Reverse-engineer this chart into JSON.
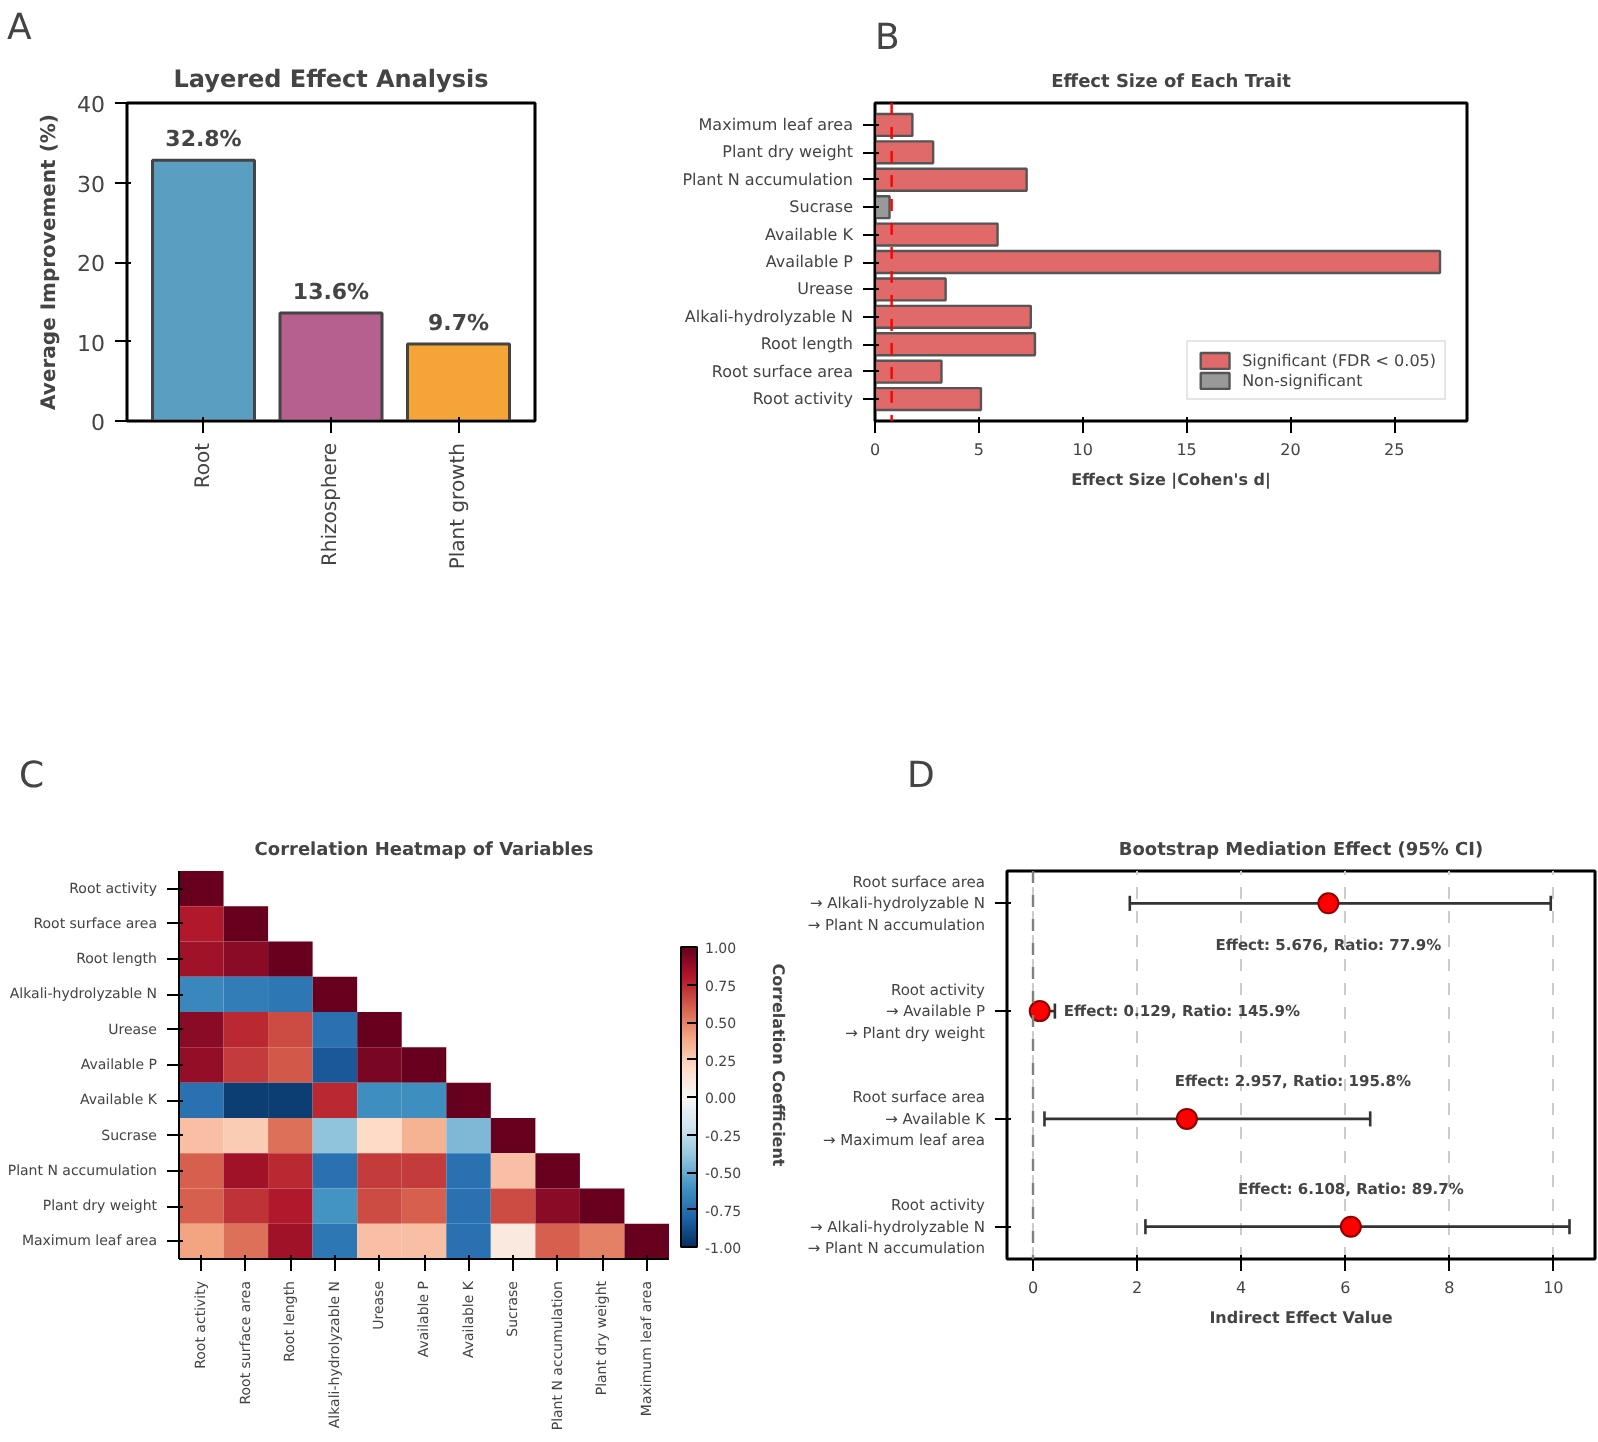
{
  "chart_data": [
    {
      "type": "bar",
      "title": "Layered Effect Analysis",
      "ylabel": "Average Improvement (%)",
      "annotations": [
        "A"
      ],
      "categories": [
        "Root",
        "Rhizosphere",
        "Plant growth"
      ],
      "values": [
        32.8,
        13.6,
        9.7
      ],
      "colors": [
        "#5a9fc1",
        "#b5608f",
        "#f5a437"
      ],
      "value_labels": [
        "32.8%",
        "13.6%",
        "9.7%"
      ],
      "ylim": [
        0,
        40
      ],
      "yticks": [
        0,
        10,
        20,
        30,
        40
      ]
    },
    {
      "type": "bar",
      "orientation": "horizontal",
      "title": "Effect Size of Each Trait",
      "xlabel": "Effect Size |Cohen's d|",
      "annotations": [
        "B"
      ],
      "categories": [
        "Maximum leaf area",
        "Plant dry weight",
        "Plant N accumulation",
        "Sucrase",
        "Available K",
        "Available P",
        "Urease",
        "Alkali-hydrolyzable N",
        "Root length",
        "Root surface area",
        "Root activity"
      ],
      "series": [
        {
          "name": "Significant (FDR < 0.05)",
          "color": "#e06a6a",
          "values": [
            1.8,
            2.8,
            7.3,
            null,
            5.9,
            27.2,
            3.4,
            7.5,
            7.7,
            3.2,
            5.1
          ]
        },
        {
          "name": "Non-significant",
          "color": "#999999",
          "values": [
            null,
            null,
            null,
            0.7,
            null,
            null,
            null,
            null,
            null,
            null,
            null
          ]
        }
      ],
      "xlim": [
        0,
        28.5
      ],
      "xticks": [
        0,
        5,
        10,
        15,
        20,
        25
      ],
      "legend": "bottom right",
      "ref_lines": [
        {
          "axis": "x",
          "value": 0.8,
          "color": "#ff0000",
          "line_style": "dashed"
        }
      ]
    },
    {
      "type": "heatmap",
      "title": "Correlation Heatmap of Variables",
      "clabel": "Correlation Coefficient",
      "annotations": [
        "C"
      ],
      "categories": [
        "Root activity",
        "Root surface area",
        "Root length",
        "Alkali-hydrolyzable N",
        "Urease",
        "Available P",
        "Available K",
        "Sucrase",
        "Plant N accumulation",
        "Plant dry weight",
        "Maximum leaf area"
      ],
      "y_categories": [
        "Root activity",
        "Root surface area",
        "Root length",
        "Alkali-hydrolyzable N",
        "Urease",
        "Available P",
        "Available K",
        "Sucrase",
        "Plant N accumulation",
        "Plant dry weight",
        "Maximum leaf area"
      ],
      "cells": [
        [
          1.0,
          null,
          null,
          null,
          null,
          null,
          null,
          null,
          null,
          null,
          null
        ],
        [
          0.8,
          1.0,
          null,
          null,
          null,
          null,
          null,
          null,
          null,
          null,
          null
        ],
        [
          0.85,
          0.9,
          1.0,
          null,
          null,
          null,
          null,
          null,
          null,
          null,
          null
        ],
        [
          -0.65,
          -0.7,
          -0.72,
          1.0,
          null,
          null,
          null,
          null,
          null,
          null,
          null
        ],
        [
          0.9,
          0.75,
          0.65,
          -0.75,
          1.0,
          null,
          null,
          null,
          null,
          null,
          null
        ],
        [
          0.88,
          0.7,
          0.62,
          -0.85,
          0.95,
          1.0,
          null,
          null,
          null,
          null,
          null
        ],
        [
          -0.75,
          -0.95,
          -0.95,
          0.75,
          -0.62,
          -0.62,
          1.0,
          null,
          null,
          null,
          null
        ],
        [
          0.3,
          0.25,
          0.55,
          -0.4,
          0.2,
          0.35,
          -0.45,
          1.0,
          null,
          null,
          null
        ],
        [
          0.6,
          0.85,
          0.75,
          -0.75,
          0.7,
          0.7,
          -0.75,
          0.3,
          1.0,
          null,
          null
        ],
        [
          0.6,
          0.72,
          0.8,
          -0.6,
          0.65,
          0.6,
          -0.75,
          0.65,
          0.9,
          1.0,
          null
        ],
        [
          0.4,
          0.55,
          0.85,
          -0.72,
          0.3,
          0.3,
          -0.75,
          0.1,
          0.6,
          0.5,
          1.0
        ]
      ],
      "clim": [
        -1,
        1
      ],
      "cticks": [
        {
          "value": -1,
          "label": "-1.00"
        },
        {
          "value": -0.75,
          "label": "-0.75"
        },
        {
          "value": -0.5,
          "label": "-0.50"
        },
        {
          "value": -0.25,
          "label": "-0.25"
        },
        {
          "value": 0,
          "label": "0.00"
        },
        {
          "value": 0.25,
          "label": "0.25"
        },
        {
          "value": 0.5,
          "label": "0.50"
        },
        {
          "value": 0.75,
          "label": "0.75"
        },
        {
          "value": 1,
          "label": "1.00"
        }
      ]
    },
    {
      "type": "scatter",
      "orientation": "horizontal",
      "title": "Bootstrap Mediation Effect (95% CI)",
      "xlabel": "Indirect Effect Value",
      "categories": [
        "Root surface area\n→ Alkali-hydrolyzable N\n→ Plant N accumulation",
        "Root activity\n→ Available P\n→ Plant dry weight",
        "Root surface area\n→ Available K\n→ Maximum leaf area",
        "Root activity\n→ Alkali-hydrolyzable N\n→ Plant N accumulation"
      ],
      "values": [
        5.676,
        0.129,
        2.957,
        6.108
      ],
      "errors": [
        [
          1.86,
          9.95
        ],
        [
          0.02,
          0.42
        ],
        [
          0.22,
          6.48
        ],
        [
          2.16,
          10.31
        ]
      ],
      "color": "#ff0000",
      "marker": "circle",
      "xlim": [
        -0.5,
        10.8
      ],
      "xticks": [
        0,
        2,
        4,
        6,
        8,
        10
      ],
      "grid": "x",
      "ref_lines": [
        {
          "axis": "x",
          "value": 0,
          "color": "#808080",
          "line_style": "dashed"
        }
      ],
      "annotations": [
        "D",
        "Effect: 5.676, Ratio: 77.9%",
        "Effect: 0.129, Ratio: 145.9%",
        "Effect: 2.957, Ratio: 195.8%",
        "Effect: 6.108, Ratio: 89.7%"
      ]
    }
  ]
}
